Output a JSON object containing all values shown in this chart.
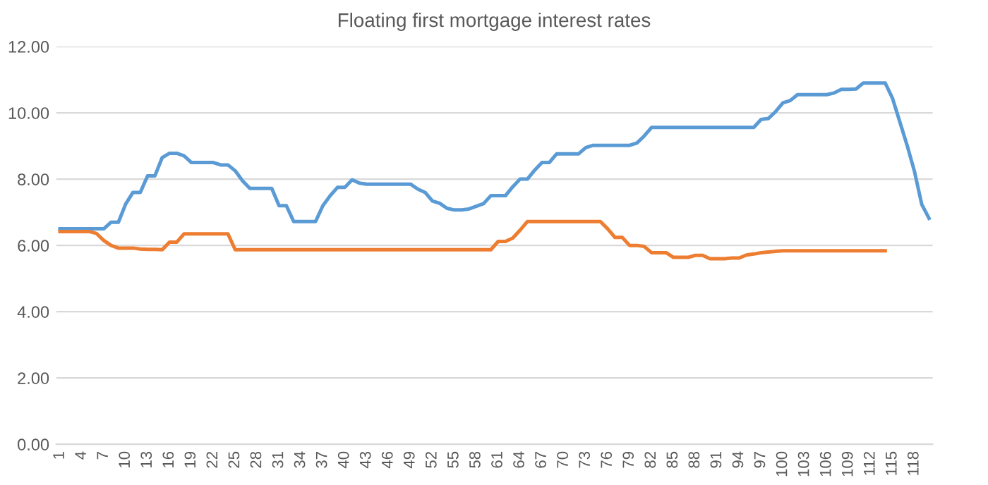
{
  "chart_data": {
    "type": "line",
    "title": "Floating first mortgage interest rates",
    "categories": [
      "1",
      null,
      null,
      "4",
      null,
      null,
      "7",
      null,
      null,
      "10",
      null,
      null,
      "13",
      null,
      null,
      "16",
      null,
      null,
      "19",
      null,
      null,
      "22",
      null,
      null,
      "25",
      null,
      null,
      "28",
      null,
      null,
      "31",
      null,
      null,
      "34",
      null,
      null,
      "37",
      null,
      null,
      "40",
      null,
      null,
      "43",
      null,
      null,
      "46",
      null,
      null,
      "49",
      null,
      null,
      "52",
      null,
      null,
      "55",
      null,
      null,
      "58",
      null,
      null,
      "61",
      null,
      null,
      "64",
      null,
      null,
      "67",
      null,
      null,
      "70",
      null,
      null,
      "73",
      null,
      null,
      "76",
      null,
      null,
      "79",
      null,
      null,
      "82",
      null,
      null,
      "85",
      null,
      null,
      "88",
      null,
      null,
      "91",
      null,
      null,
      "94",
      null,
      null,
      "97",
      null,
      null,
      "100",
      null,
      null,
      "103",
      null,
      null,
      "106",
      null,
      null,
      "109",
      null,
      null,
      "112",
      null,
      null,
      "115",
      null,
      null,
      "118",
      null,
      null
    ],
    "series": [
      {
        "color": "#5b9bd5",
        "values": [
          6.5,
          6.5,
          6.5,
          6.5,
          6.5,
          6.5,
          6.5,
          6.7,
          6.7,
          7.25,
          7.6,
          7.6,
          8.1,
          8.1,
          8.65,
          8.78,
          8.78,
          8.7,
          8.5,
          8.5,
          8.5,
          8.5,
          8.43,
          8.43,
          8.25,
          7.95,
          7.72,
          7.72,
          7.72,
          7.72,
          7.2,
          7.2,
          6.72,
          6.72,
          6.72,
          6.72,
          7.2,
          7.5,
          7.75,
          7.75,
          7.98,
          7.88,
          7.85,
          7.85,
          7.85,
          7.85,
          7.85,
          7.85,
          7.85,
          7.7,
          7.6,
          7.34,
          7.27,
          7.12,
          7.07,
          7.07,
          7.1,
          7.18,
          7.26,
          7.5,
          7.5,
          7.5,
          7.77,
          8.0,
          8.0,
          8.27,
          8.5,
          8.5,
          8.76,
          8.76,
          8.76,
          8.76,
          8.95,
          9.02,
          9.02,
          9.02,
          9.02,
          9.02,
          9.02,
          9.09,
          9.3,
          9.56,
          9.56,
          9.56,
          9.56,
          9.56,
          9.56,
          9.56,
          9.56,
          9.56,
          9.56,
          9.56,
          9.56,
          9.56,
          9.56,
          9.56,
          9.8,
          9.83,
          10.04,
          10.3,
          10.37,
          10.55,
          10.55,
          10.55,
          10.55,
          10.55,
          10.6,
          10.71,
          10.71,
          10.72,
          10.9,
          10.9,
          10.9,
          10.9,
          10.44,
          9.73,
          9.02,
          8.24,
          7.24,
          6.82
        ]
      },
      {
        "color": "#ed7d31",
        "values": [
          6.42,
          6.42,
          6.42,
          6.42,
          6.42,
          6.36,
          6.15,
          6.0,
          5.92,
          5.92,
          5.92,
          5.89,
          5.88,
          5.88,
          5.87,
          6.1,
          6.1,
          6.35,
          6.35,
          6.35,
          6.35,
          6.35,
          6.35,
          6.35,
          5.87,
          5.87,
          5.87,
          5.87,
          5.87,
          5.87,
          5.87,
          5.87,
          5.87,
          5.87,
          5.87,
          5.87,
          5.87,
          5.87,
          5.87,
          5.87,
          5.87,
          5.87,
          5.87,
          5.87,
          5.87,
          5.87,
          5.87,
          5.87,
          5.87,
          5.87,
          5.87,
          5.87,
          5.87,
          5.87,
          5.87,
          5.87,
          5.87,
          5.87,
          5.87,
          5.87,
          6.12,
          6.12,
          6.22,
          6.46,
          6.72,
          6.72,
          6.72,
          6.72,
          6.72,
          6.72,
          6.72,
          6.72,
          6.72,
          6.72,
          6.72,
          6.5,
          6.24,
          6.24,
          6.0,
          6.0,
          5.97,
          5.78,
          5.78,
          5.78,
          5.64,
          5.64,
          5.64,
          5.7,
          5.7,
          5.6,
          5.6,
          5.6,
          5.62,
          5.62,
          5.71,
          5.74,
          5.78,
          5.8,
          5.82,
          5.84,
          5.84,
          5.84,
          5.84,
          5.84,
          5.84,
          5.84,
          5.84,
          5.84,
          5.84,
          5.84,
          5.84,
          5.84,
          5.84,
          5.84,
          null,
          null,
          null,
          null,
          null,
          null
        ]
      }
    ],
    "ylim": [
      0,
      12
    ],
    "yticks": [
      {
        "value": 0,
        "label": "0.00"
      },
      {
        "value": 2,
        "label": "2.00"
      },
      {
        "value": 4,
        "label": "4.00"
      },
      {
        "value": 6,
        "label": "6.00"
      },
      {
        "value": 8,
        "label": "8.00"
      },
      {
        "value": 10,
        "label": "10.00"
      },
      {
        "value": 12,
        "label": "12.00"
      }
    ],
    "grid": "y",
    "marker": "none",
    "line_style": "solid"
  }
}
